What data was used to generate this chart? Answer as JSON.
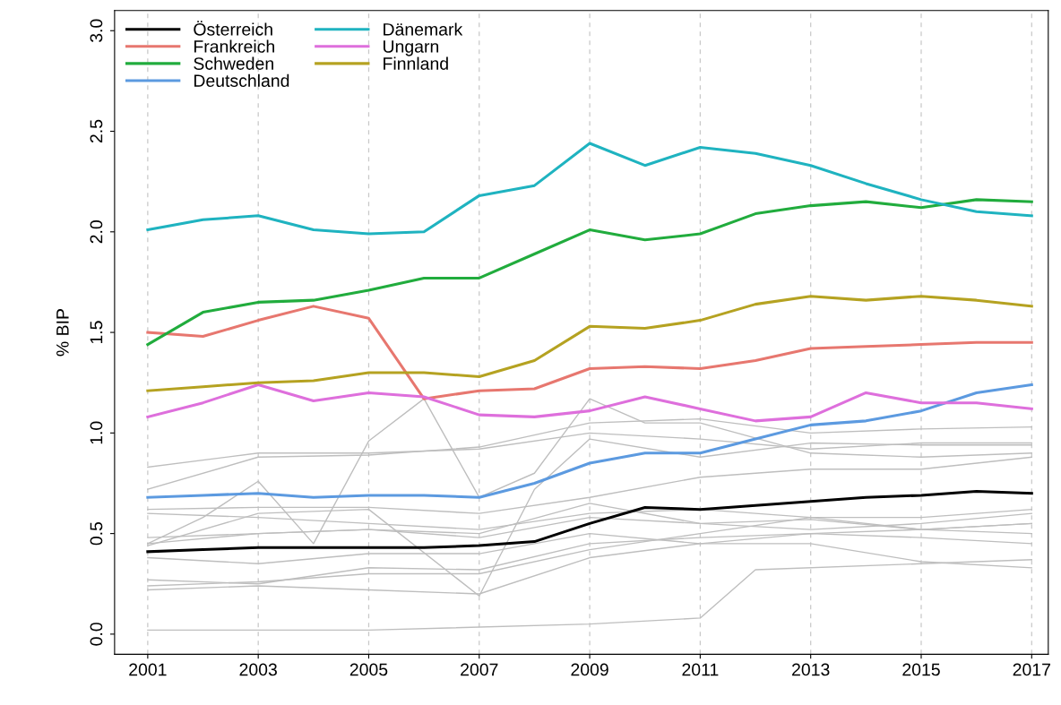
{
  "chart_data": {
    "type": "line",
    "ylabel": "% BIP",
    "xlim": [
      2000.4,
      2017.3
    ],
    "ylim": [
      -0.1,
      3.1
    ],
    "xticks": [
      2001,
      2003,
      2005,
      2007,
      2009,
      2011,
      2013,
      2015,
      2017
    ],
    "yticks": [
      {
        "value": 0,
        "label": "0.0"
      },
      {
        "value": 0.5,
        "label": "0.5"
      },
      {
        "value": 1,
        "label": "1.0"
      },
      {
        "value": 1.5,
        "label": "1.5"
      },
      {
        "value": 2,
        "label": "2.0"
      },
      {
        "value": 2.5,
        "label": "2.5"
      },
      {
        "value": 3,
        "label": "3.0"
      }
    ],
    "grid": "x",
    "legend": "top left",
    "x": [
      2001,
      2002,
      2003,
      2004,
      2005,
      2006,
      2007,
      2008,
      2009,
      2010,
      2011,
      2012,
      2013,
      2014,
      2015,
      2016,
      2017
    ],
    "series": [
      {
        "color": "#bebebe",
        "x": [
          2001,
          2003,
          2005,
          2007,
          2009,
          2011,
          2013,
          2015,
          2017
        ],
        "values": [
          0.83,
          0.9,
          0.9,
          0.92,
          1.0,
          0.97,
          0.92,
          0.95,
          0.95
        ]
      },
      {
        "color": "#bebebe",
        "x": [
          2001,
          2003,
          2005,
          2007,
          2009,
          2011,
          2013,
          2015,
          2017
        ],
        "values": [
          0.72,
          0.88,
          0.89,
          0.93,
          1.05,
          1.07,
          1.0,
          1.02,
          1.03
        ]
      },
      {
        "color": "#bebebe",
        "x": [
          2001,
          2003,
          2005,
          2007,
          2009,
          2011,
          2013,
          2015,
          2017
        ],
        "values": [
          0.62,
          0.63,
          0.63,
          0.6,
          0.68,
          0.78,
          0.82,
          0.82,
          0.88
        ]
      },
      {
        "color": "#bebebe",
        "x": [
          2001,
          2003,
          2005,
          2007,
          2009,
          2011,
          2013,
          2015,
          2017
        ],
        "values": [
          0.6,
          0.58,
          0.55,
          0.52,
          0.6,
          0.62,
          0.58,
          0.58,
          0.62
        ]
      },
      {
        "color": "#bebebe",
        "x": [
          2001,
          2003,
          2005,
          2007,
          2009,
          2011,
          2013,
          2015,
          2017
        ],
        "values": [
          0.48,
          0.5,
          0.52,
          0.48,
          0.58,
          0.55,
          0.57,
          0.52,
          0.55
        ]
      },
      {
        "color": "#bebebe",
        "x": [
          2001,
          2003,
          2005,
          2007,
          2009,
          2011,
          2013,
          2015,
          2017
        ],
        "values": [
          0.45,
          0.5,
          0.52,
          0.5,
          0.65,
          0.55,
          0.52,
          0.55,
          0.6
        ]
      },
      {
        "color": "#bebebe",
        "x": [
          2001,
          2003,
          2005,
          2007,
          2009,
          2011,
          2013,
          2015,
          2017
        ],
        "values": [
          0.38,
          0.35,
          0.4,
          0.4,
          0.5,
          0.45,
          0.5,
          0.52,
          0.55
        ]
      },
      {
        "color": "#bebebe",
        "x": [
          2001,
          2003,
          2005,
          2007,
          2009,
          2011,
          2013,
          2015,
          2017
        ],
        "values": [
          0.27,
          0.25,
          0.33,
          0.32,
          0.45,
          0.48,
          0.5,
          0.48,
          0.45
        ]
      },
      {
        "color": "#bebebe",
        "x": [
          2001,
          2003,
          2005,
          2007,
          2009,
          2011,
          2013,
          2015,
          2017
        ],
        "values": [
          0.24,
          0.26,
          0.3,
          0.3,
          0.42,
          0.5,
          0.58,
          0.52,
          0.5
        ]
      },
      {
        "color": "#bebebe",
        "x": [
          2001,
          2003,
          2005,
          2007,
          2009,
          2011,
          2013,
          2015,
          2017
        ],
        "values": [
          0.22,
          0.24,
          0.22,
          0.2,
          0.38,
          0.45,
          0.45,
          0.36,
          0.33
        ]
      },
      {
        "color": "#bebebe",
        "x": [
          2001,
          2005,
          2009,
          2011,
          2012,
          2015,
          2017
        ],
        "values": [
          0.02,
          0.02,
          0.05,
          0.08,
          0.32,
          0.35,
          0.37
        ]
      },
      {
        "color": "#bebebe",
        "x": [
          2001,
          2002,
          2003,
          2004,
          2005,
          2006,
          2007,
          2008,
          2009,
          2010,
          2011,
          2013,
          2015,
          2017
        ],
        "values": [
          0.45,
          0.58,
          0.76,
          0.45,
          0.96,
          1.17,
          0.68,
          0.8,
          1.17,
          1.05,
          1.05,
          0.9,
          0.88,
          0.9
        ]
      },
      {
        "color": "#bebebe",
        "x": [
          2001,
          2003,
          2005,
          2007,
          2008,
          2009,
          2011,
          2013,
          2015,
          2017
        ],
        "values": [
          0.44,
          0.6,
          0.62,
          0.19,
          0.72,
          0.97,
          0.88,
          0.95,
          0.94,
          0.94
        ]
      },
      {
        "name": "Österreich",
        "color": "#000000",
        "values": [
          0.41,
          0.42,
          0.43,
          0.43,
          0.43,
          0.43,
          0.44,
          0.46,
          0.55,
          0.63,
          0.62,
          0.64,
          0.66,
          0.68,
          0.69,
          0.71,
          0.7
        ]
      },
      {
        "name": "Frankreich",
        "color": "#e7776f",
        "values": [
          1.5,
          1.48,
          1.56,
          1.63,
          1.57,
          1.17,
          1.21,
          1.22,
          1.32,
          1.33,
          1.32,
          1.36,
          1.42,
          1.43,
          1.44,
          1.45,
          1.45
        ]
      },
      {
        "name": "Schweden",
        "color": "#21ac3d",
        "values": [
          1.44,
          1.6,
          1.65,
          1.66,
          1.71,
          1.77,
          1.77,
          1.89,
          2.01,
          1.96,
          1.99,
          2.09,
          2.13,
          2.15,
          2.12,
          2.16,
          2.15
        ]
      },
      {
        "name": "Deutschland",
        "color": "#5c9ae0",
        "values": [
          0.68,
          0.69,
          0.7,
          0.68,
          0.69,
          0.69,
          0.68,
          0.75,
          0.85,
          0.9,
          0.9,
          0.97,
          1.04,
          1.06,
          1.11,
          1.2,
          1.24
        ]
      },
      {
        "name": "Dänemark",
        "color": "#1fb3c0",
        "values": [
          2.01,
          2.06,
          2.08,
          2.01,
          1.99,
          2.0,
          2.18,
          2.23,
          2.44,
          2.33,
          2.42,
          2.39,
          2.33,
          2.24,
          2.16,
          2.1,
          2.08
        ]
      },
      {
        "name": "Ungarn",
        "color": "#de6fdc",
        "values": [
          1.08,
          1.15,
          1.24,
          1.16,
          1.2,
          1.18,
          1.09,
          1.08,
          1.11,
          1.18,
          1.12,
          1.06,
          1.08,
          1.2,
          1.15,
          1.15,
          1.12
        ]
      },
      {
        "name": "Finnland",
        "color": "#b5a221",
        "values": [
          1.21,
          1.23,
          1.25,
          1.26,
          1.3,
          1.3,
          1.28,
          1.36,
          1.53,
          1.52,
          1.56,
          1.64,
          1.68,
          1.66,
          1.68,
          1.66,
          1.63
        ]
      }
    ]
  }
}
